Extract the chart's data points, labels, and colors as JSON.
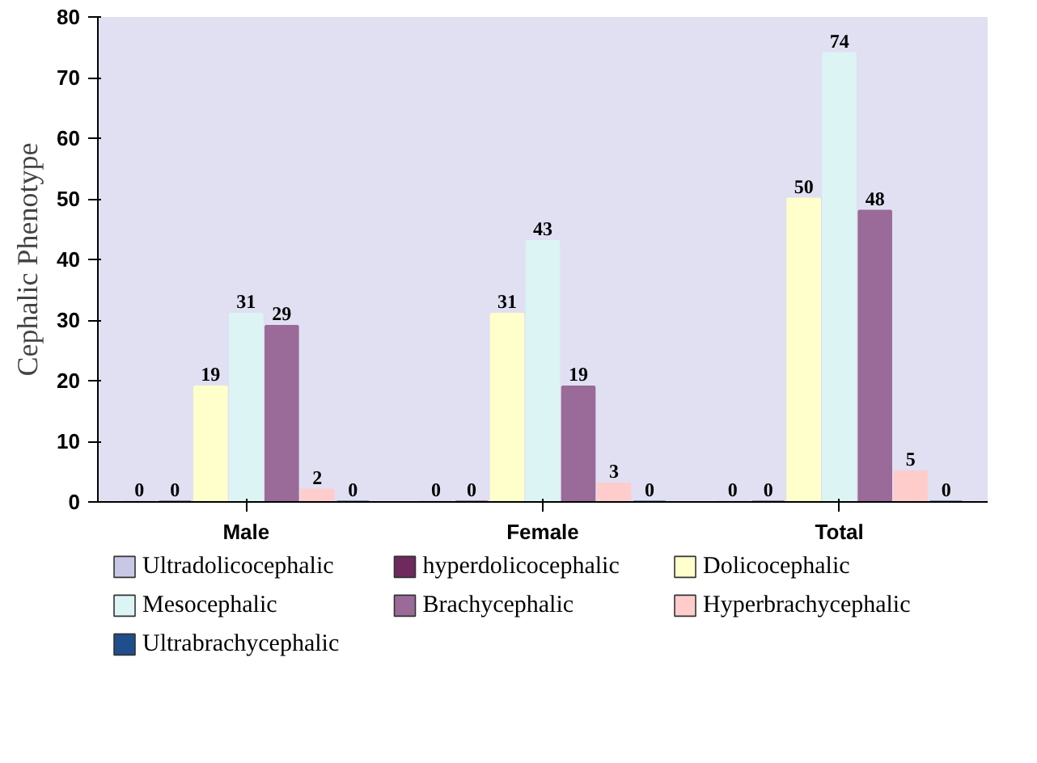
{
  "chart_data": {
    "type": "bar",
    "ylabel": "Cephalic Phenotype",
    "categories": [
      "Male",
      "Female",
      "Total"
    ],
    "series": [
      {
        "name": "Ultradolicocephalic",
        "color": "#c8c8e6",
        "values": [
          0,
          0,
          0
        ]
      },
      {
        "name": "hyperdolicocephalic",
        "color": "#6e2a5c",
        "values": [
          0,
          0,
          0
        ]
      },
      {
        "name": "Dolicocephalic",
        "color": "#ffffcc",
        "values": [
          19,
          31,
          50
        ]
      },
      {
        "name": "Mesocephalic",
        "color": "#dcf4f4",
        "values": [
          31,
          43,
          74
        ]
      },
      {
        "name": "Brachycephalic",
        "color": "#9a6a98",
        "values": [
          29,
          19,
          48
        ]
      },
      {
        "name": "Hyperbrachycephalic",
        "color": "#ffcccc",
        "values": [
          2,
          3,
          5
        ]
      },
      {
        "name": "Ultrabrachycephalic",
        "color": "#1f4e8c",
        "values": [
          0,
          0,
          0
        ]
      }
    ],
    "ylim": [
      0,
      80
    ],
    "yticks": [
      0,
      10,
      20,
      30,
      40,
      50,
      60,
      70,
      80
    ],
    "data_labels": true,
    "legend": "bottom",
    "grid": false
  }
}
